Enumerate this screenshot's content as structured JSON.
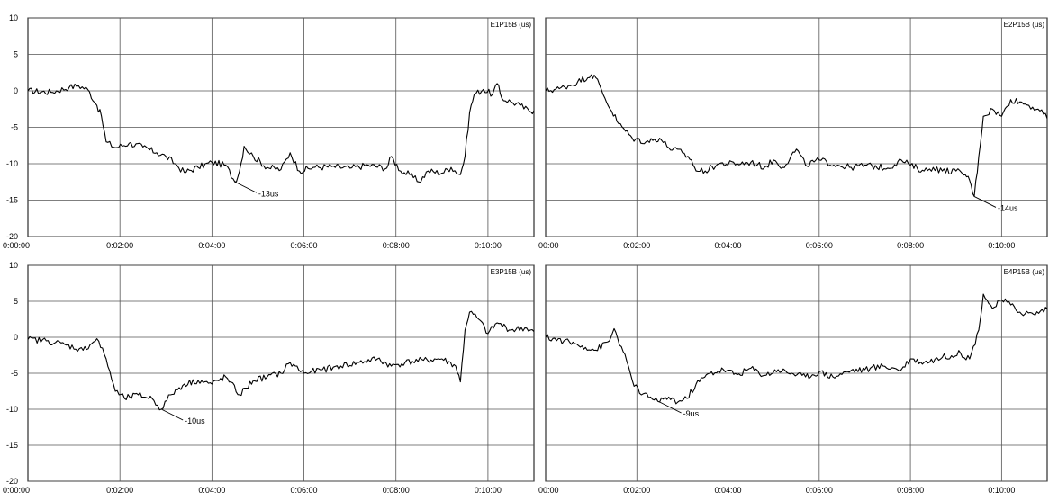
{
  "chart_data": [
    {
      "type": "line",
      "title": "E1P15B (us)",
      "ylim": [
        -20,
        10
      ],
      "yticks": [
        "10",
        "5",
        "0",
        "-5",
        "-10",
        "-15",
        "-20"
      ],
      "xlim": [
        0,
        11
      ],
      "xticks": [
        "0:00:00",
        "0:02:00",
        "0:04:00",
        "0:06:00",
        "0:08:00",
        "0:10:00"
      ],
      "annotation": {
        "text": "-13us",
        "x": 4.5,
        "y": -12.5
      },
      "series": [
        {
          "points": [
            [
              0,
              0
            ],
            [
              0.5,
              -0.2
            ],
            [
              0.9,
              0.5
            ],
            [
              1.1,
              0.7
            ],
            [
              1.3,
              0.2
            ],
            [
              1.5,
              -2
            ],
            [
              1.6,
              -3.5
            ],
            [
              1.7,
              -7
            ],
            [
              1.9,
              -7.8
            ],
            [
              2.2,
              -7.2
            ],
            [
              2.5,
              -7.7
            ],
            [
              2.8,
              -8.5
            ],
            [
              3.0,
              -9
            ],
            [
              3.2,
              -10
            ],
            [
              3.4,
              -11.2
            ],
            [
              3.7,
              -10.5
            ],
            [
              4.0,
              -9.8
            ],
            [
              4.3,
              -10.2
            ],
            [
              4.5,
              -12.5
            ],
            [
              4.6,
              -11
            ],
            [
              4.7,
              -7.6
            ],
            [
              4.9,
              -9
            ],
            [
              5.2,
              -10.5
            ],
            [
              5.5,
              -10.8
            ],
            [
              5.7,
              -8.5
            ],
            [
              5.9,
              -11
            ],
            [
              6.2,
              -10.5
            ],
            [
              6.6,
              -10.4
            ],
            [
              7.0,
              -10.6
            ],
            [
              7.4,
              -10.2
            ],
            [
              7.8,
              -10.6
            ],
            [
              7.9,
              -9
            ],
            [
              8.1,
              -11
            ],
            [
              8.3,
              -11.5
            ],
            [
              8.5,
              -12.5
            ],
            [
              8.7,
              -11
            ],
            [
              9.0,
              -11.3
            ],
            [
              9.2,
              -10.5
            ],
            [
              9.4,
              -11.5
            ],
            [
              9.5,
              -9
            ],
            [
              9.6,
              -3
            ],
            [
              9.7,
              -0.5
            ],
            [
              9.9,
              0.2
            ],
            [
              10.1,
              -0.5
            ],
            [
              10.2,
              1
            ],
            [
              10.3,
              -1
            ],
            [
              10.5,
              -1.5
            ],
            [
              10.7,
              -2
            ],
            [
              10.9,
              -2.8
            ],
            [
              11.0,
              -2.7
            ]
          ]
        }
      ]
    },
    {
      "type": "line",
      "title": "E2P15B (us)",
      "ylim": [
        -20,
        10
      ],
      "yticks": [
        "10",
        "5",
        "0",
        "-5",
        "-10",
        "-15",
        "-20"
      ],
      "xlim": [
        0,
        11
      ],
      "xticks": [
        "00:00",
        "0:02:00",
        "0:04:00",
        "0:06:00",
        "0:08:00",
        "0:10:00"
      ],
      "annotation": {
        "text": "-14us",
        "x": 9.4,
        "y": -14.5
      },
      "series": [
        {
          "points": [
            [
              0,
              0
            ],
            [
              0.3,
              0.3
            ],
            [
              0.7,
              1.2
            ],
            [
              1.0,
              2.2
            ],
            [
              1.1,
              1.8
            ],
            [
              1.3,
              -1
            ],
            [
              1.6,
              -4.5
            ],
            [
              1.9,
              -6.5
            ],
            [
              2.2,
              -7
            ],
            [
              2.5,
              -6.5
            ],
            [
              2.7,
              -7.8
            ],
            [
              3.0,
              -8.5
            ],
            [
              3.2,
              -9.5
            ],
            [
              3.3,
              -11
            ],
            [
              3.5,
              -11
            ],
            [
              3.8,
              -10
            ],
            [
              4.2,
              -10
            ],
            [
              4.5,
              -9.8
            ],
            [
              4.8,
              -10.5
            ],
            [
              5.0,
              -9.5
            ],
            [
              5.2,
              -10.5
            ],
            [
              5.5,
              -8
            ],
            [
              5.7,
              -10.2
            ],
            [
              6.0,
              -9.5
            ],
            [
              6.4,
              -10.2
            ],
            [
              6.7,
              -10.5
            ],
            [
              7.0,
              -10.2
            ],
            [
              7.5,
              -10.6
            ],
            [
              7.8,
              -9.5
            ],
            [
              8.0,
              -10.2
            ],
            [
              8.3,
              -11
            ],
            [
              8.5,
              -10.5
            ],
            [
              8.7,
              -11
            ],
            [
              9.0,
              -11
            ],
            [
              9.2,
              -11.5
            ],
            [
              9.3,
              -12.3
            ],
            [
              9.4,
              -14.5
            ],
            [
              9.5,
              -9
            ],
            [
              9.6,
              -3.5
            ],
            [
              9.8,
              -2.5
            ],
            [
              10.0,
              -3.5
            ],
            [
              10.2,
              -1.2
            ],
            [
              10.4,
              -1.5
            ],
            [
              10.6,
              -2
            ],
            [
              10.8,
              -2.5
            ],
            [
              11.0,
              -3.8
            ]
          ]
        }
      ]
    },
    {
      "type": "line",
      "title": "E3P15B (us)",
      "ylim": [
        -20,
        10
      ],
      "yticks": [
        "10",
        "5",
        "0",
        "-5",
        "-10",
        "-15",
        "-20"
      ],
      "xlim": [
        0,
        11
      ],
      "xticks": [
        "0:00:00",
        "0:02:00",
        "0:04:00",
        "0:06:00",
        "0:08:00",
        "0:10:00"
      ],
      "annotation": {
        "text": "-10us",
        "x": 2.9,
        "y": -10
      },
      "series": [
        {
          "points": [
            [
              0,
              -0.3
            ],
            [
              0.4,
              -0.5
            ],
            [
              0.8,
              -1
            ],
            [
              1.2,
              -1.8
            ],
            [
              1.5,
              -0.2
            ],
            [
              1.7,
              -3
            ],
            [
              1.9,
              -7.5
            ],
            [
              2.1,
              -8.5
            ],
            [
              2.4,
              -8
            ],
            [
              2.7,
              -8.5
            ],
            [
              2.9,
              -10
            ],
            [
              3.1,
              -8
            ],
            [
              3.4,
              -6.5
            ],
            [
              3.7,
              -6
            ],
            [
              4.0,
              -6.5
            ],
            [
              4.3,
              -5.5
            ],
            [
              4.6,
              -8
            ],
            [
              4.9,
              -6
            ],
            [
              5.2,
              -5.5
            ],
            [
              5.5,
              -5
            ],
            [
              5.7,
              -3.5
            ],
            [
              6.0,
              -5
            ],
            [
              6.4,
              -4.5
            ],
            [
              6.8,
              -4
            ],
            [
              7.2,
              -3.5
            ],
            [
              7.6,
              -3
            ],
            [
              7.9,
              -4
            ],
            [
              8.2,
              -3.5
            ],
            [
              8.6,
              -3.2
            ],
            [
              9.0,
              -3
            ],
            [
              9.3,
              -4
            ],
            [
              9.4,
              -6.2
            ],
            [
              9.5,
              1
            ],
            [
              9.6,
              3.5
            ],
            [
              9.8,
              2.5
            ],
            [
              10.0,
              0.5
            ],
            [
              10.2,
              2
            ],
            [
              10.5,
              1
            ],
            [
              10.8,
              1.3
            ],
            [
              11.0,
              0.8
            ]
          ]
        }
      ]
    },
    {
      "type": "line",
      "title": "E4P15B (us)",
      "ylim": [
        -20,
        10
      ],
      "yticks": [
        "10",
        "5",
        "0",
        "-5",
        "-10",
        "-15",
        "-20"
      ],
      "xlim": [
        0,
        11
      ],
      "xticks": [
        "00:00",
        "0:02:00",
        "0:04:00",
        "0:06:00",
        "0:08:00",
        "0:10:00"
      ],
      "annotation": {
        "text": "-9us",
        "x": 2.5,
        "y": -9
      },
      "series": [
        {
          "points": [
            [
              0,
              0
            ],
            [
              0.4,
              -0.5
            ],
            [
              0.8,
              -1.2
            ],
            [
              1.1,
              -1.8
            ],
            [
              1.4,
              -0.5
            ],
            [
              1.5,
              1.2
            ],
            [
              1.7,
              -2
            ],
            [
              1.9,
              -6
            ],
            [
              2.1,
              -8
            ],
            [
              2.3,
              -8.3
            ],
            [
              2.5,
              -9
            ],
            [
              2.7,
              -8.3
            ],
            [
              2.9,
              -9
            ],
            [
              3.1,
              -8.5
            ],
            [
              3.3,
              -6.5
            ],
            [
              3.6,
              -5
            ],
            [
              3.9,
              -4.5
            ],
            [
              4.2,
              -5.2
            ],
            [
              4.5,
              -4.3
            ],
            [
              4.8,
              -5.3
            ],
            [
              5.1,
              -4.5
            ],
            [
              5.4,
              -5
            ],
            [
              5.7,
              -5.5
            ],
            [
              6.0,
              -4.8
            ],
            [
              6.3,
              -5.5
            ],
            [
              6.7,
              -4.6
            ],
            [
              7.0,
              -4.5
            ],
            [
              7.4,
              -4
            ],
            [
              7.8,
              -4.5
            ],
            [
              8.0,
              -3
            ],
            [
              8.3,
              -3.5
            ],
            [
              8.7,
              -2.8
            ],
            [
              9.1,
              -2.2
            ],
            [
              9.3,
              -3
            ],
            [
              9.5,
              1
            ],
            [
              9.6,
              6
            ],
            [
              9.8,
              4
            ],
            [
              10.0,
              5.2
            ],
            [
              10.2,
              4.5
            ],
            [
              10.4,
              3.5
            ],
            [
              10.7,
              3.2
            ],
            [
              11.0,
              4
            ]
          ]
        }
      ]
    }
  ]
}
